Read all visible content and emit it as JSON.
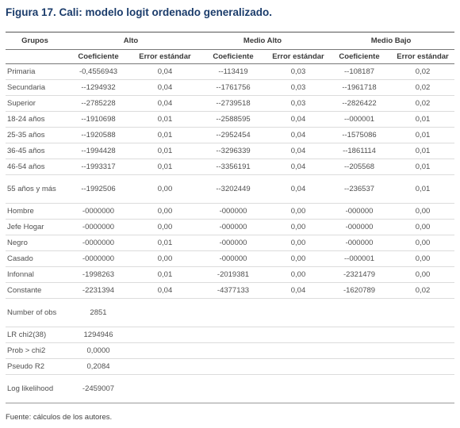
{
  "title": "Figura 17. Cali:  modelo logit ordenado generalizado.",
  "header": {
    "groups_label": "Grupos",
    "group_names": [
      "Alto",
      "Medio Alto",
      "Medio Bajo"
    ],
    "sub_labels": [
      "Coeficiente",
      "Error estándar",
      "Coeficiente",
      "Error estándar",
      "Coeficiente",
      "Error estándar"
    ]
  },
  "rows": [
    {
      "label": "Primaria",
      "cells": [
        "-0,4556943",
        "0,04",
        "--113419",
        "0,03",
        "--108187",
        "0,02"
      ]
    },
    {
      "label": "Secundaria",
      "cells": [
        "--1294932",
        "0,04",
        "--1761756",
        "0,03",
        "--1961718",
        "0,02"
      ]
    },
    {
      "label": "Superior",
      "cells": [
        "--2785228",
        "0,04",
        "--2739518",
        "0,03",
        "--2826422",
        "0,02"
      ]
    },
    {
      "label": "18-24 años",
      "cells": [
        "--1910698",
        "0,01",
        "--2588595",
        "0,04",
        "--000001",
        "0,01"
      ]
    },
    {
      "label": "25-35 años",
      "cells": [
        "--1920588",
        "0,01",
        "--2952454",
        "0,04",
        "--1575086",
        "0,01"
      ]
    },
    {
      "label": "36-45 años",
      "cells": [
        "--1994428",
        "0,01",
        "--3296339",
        "0,04",
        "--1861114",
        "0,01"
      ]
    },
    {
      "label": "46-54 años",
      "cells": [
        "--1993317",
        "0,01",
        "--3356191",
        "0,04",
        "--205568",
        "0,01"
      ]
    },
    {
      "label": "55 años y más",
      "cells": [
        "--1992506",
        "0,00",
        "--3202449",
        "0,04",
        "--236537",
        "0,01"
      ]
    },
    {
      "label": "Hombre",
      "cells": [
        "-0000000",
        "0,00",
        "-000000",
        "0,00",
        "-000000",
        "0,00"
      ]
    },
    {
      "label": "Jefe Hogar",
      "cells": [
        "-0000000",
        "0,00",
        "-000000",
        "0,00",
        "-000000",
        "0,00"
      ]
    },
    {
      "label": "Negro",
      "cells": [
        "-0000000",
        "0,01",
        "-000000",
        "0,00",
        "-000000",
        "0,00"
      ]
    },
    {
      "label": "Casado",
      "cells": [
        "-0000000",
        "0,00",
        "-000000",
        "0,00",
        "--000001",
        "0,00"
      ]
    },
    {
      "label": "Infonnal",
      "cells": [
        "-1998263",
        "0,01",
        "-2019381",
        "0,00",
        "-2321479",
        "0,00"
      ]
    },
    {
      "label": "Constante",
      "cells": [
        "-2231394",
        "0,04",
        "-4377133",
        "0,04",
        "-1620789",
        "0,02"
      ]
    },
    {
      "label": "Number of obs",
      "cells": [
        "2851",
        "",
        "",
        "",
        "",
        ""
      ]
    },
    {
      "label": "LR chi2(38)",
      "cells": [
        "1294946",
        "",
        "",
        "",
        "",
        ""
      ]
    },
    {
      "label": "Prob > chi2",
      "cells": [
        "0,0000",
        "",
        "",
        "",
        "",
        ""
      ]
    },
    {
      "label": "Pseudo R2",
      "cells": [
        "0,2084",
        "",
        "",
        "",
        "",
        ""
      ]
    },
    {
      "label": "Log likelihood",
      "cells": [
        "-2459007",
        "",
        "",
        "",
        "",
        ""
      ]
    }
  ],
  "footnote": "Fuente: cálculos de los autores."
}
